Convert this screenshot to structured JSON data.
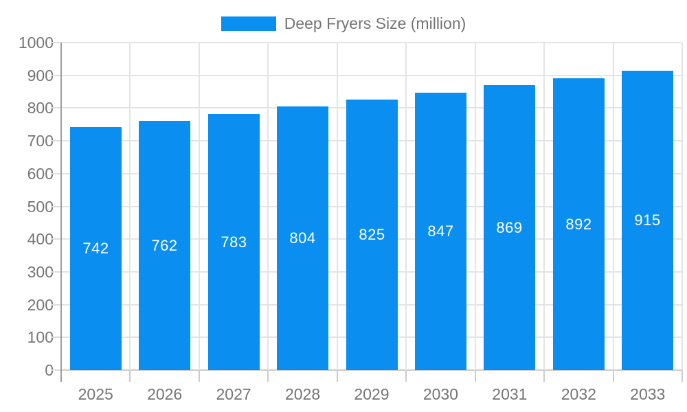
{
  "chart_data": {
    "type": "bar",
    "title": "",
    "legend": "Deep Fryers Size (million)",
    "legend_position": "top-center",
    "categories": [
      "2025",
      "2026",
      "2027",
      "2028",
      "2029",
      "2030",
      "2031",
      "2032",
      "2033"
    ],
    "series": [
      {
        "name": "Deep Fryers Size (million)",
        "values": [
          742,
          762,
          783,
          804,
          825,
          847,
          869,
          892,
          915
        ]
      }
    ],
    "value_labels": "inside-center",
    "xlabel": "",
    "ylabel": "",
    "ylim": [
      0,
      1000
    ],
    "yticks": [
      0,
      100,
      200,
      300,
      400,
      500,
      600,
      700,
      800,
      900,
      1000
    ],
    "grid": "horizontal-and-vertical",
    "colors": {
      "bar": "#0a8ff0",
      "grid": "#e4e4e4",
      "axis_line": "#9e9e9e",
      "baseline": "#cccccc",
      "minor_tick": "#dddddd",
      "bottom_tick": "#cccccc",
      "axis_text": "#757575",
      "legend_text": "#757575",
      "value_text": "#ffffff",
      "background": "#ffffff"
    }
  }
}
